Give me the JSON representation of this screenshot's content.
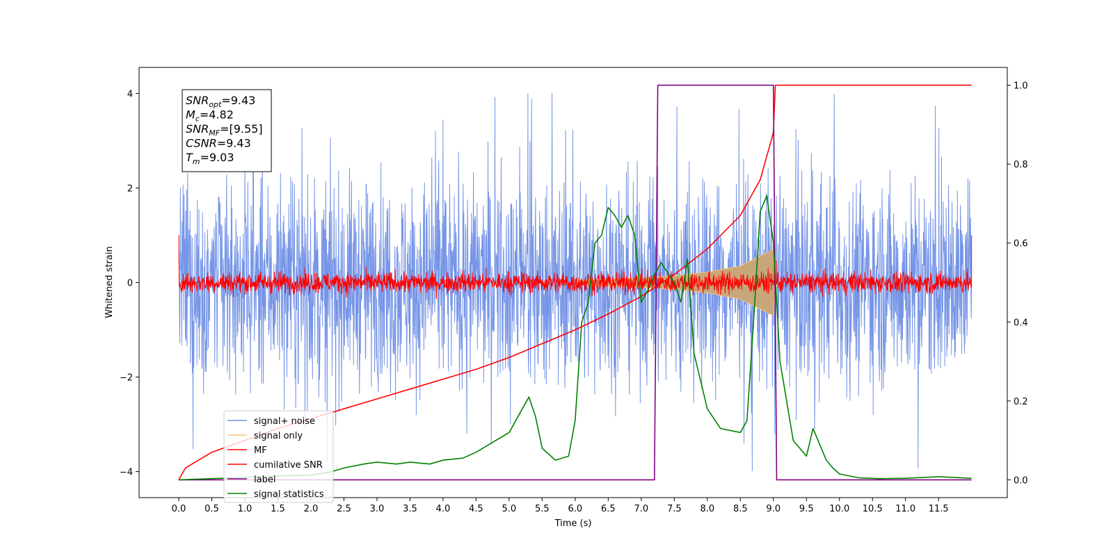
{
  "chart_data": {
    "type": "line",
    "xlabel": "Time (s)",
    "ylabel": "Whitened strain",
    "xlim": [
      -0.6,
      12.54
    ],
    "ylim": [
      -4.55,
      4.55
    ],
    "y2lim": [
      -0.045,
      1.045
    ],
    "x_ticks": [
      "0.0",
      "0.5",
      "1.0",
      "1.5",
      "2.0",
      "2.5",
      "3.0",
      "3.5",
      "4.0",
      "4.5",
      "5.0",
      "5.5",
      "6.0",
      "6.5",
      "7.0",
      "7.5",
      "8.0",
      "8.5",
      "9.0",
      "9.5",
      "10.0",
      "10.5",
      "11.0",
      "11.5"
    ],
    "y_ticks": [
      "4",
      "2",
      "0",
      "−2",
      "−4"
    ],
    "y2_ticks": [
      "1.0",
      "0.8",
      "0.6",
      "0.4",
      "0.2",
      "0.0"
    ],
    "annotation": {
      "lines": [
        {
          "main": "SNR",
          "sub": "opt",
          "value": "=9.43"
        },
        {
          "main": "M",
          "sub": "c",
          "value": "=4.82"
        },
        {
          "main": "SNR",
          "sub": "MF",
          "value": "=[9.55]"
        },
        {
          "main": "CSNR",
          "sub": "",
          "value": "=9.43"
        },
        {
          "main": "T",
          "sub": "m",
          "value": "=9.03"
        }
      ]
    },
    "legend": {
      "placement": "lower-left",
      "entries": [
        {
          "label": "signal+ noise",
          "color": "#6f8fe6"
        },
        {
          "label": "signal only",
          "color": "#f5c27a"
        },
        {
          "label": "MF",
          "color": "#ff0000"
        },
        {
          "label": "cumilative SNR",
          "color": "#ff0000"
        },
        {
          "label": "label",
          "color": "#800080"
        },
        {
          "label": "signal statistics",
          "color": "#008000"
        }
      ]
    },
    "series": [
      {
        "name": "signal+ noise",
        "axis": "left",
        "color": "#6f8fe6",
        "t_range": [
          0.0,
          12.0
        ],
        "mean": 0.0,
        "amplitude_typical": 1.6,
        "amplitude_peak": 4.1
      },
      {
        "name": "signal only",
        "axis": "left",
        "color": "#f5c27a",
        "t_range": [
          0.0,
          9.03
        ],
        "envelope": [
          [
            6.0,
            0.05
          ],
          [
            7.0,
            0.1
          ],
          [
            7.5,
            0.14
          ],
          [
            8.0,
            0.22
          ],
          [
            8.5,
            0.35
          ],
          [
            9.0,
            0.7
          ],
          [
            9.03,
            0.0
          ]
        ]
      },
      {
        "name": "MF",
        "axis": "left",
        "color": "#ff0000",
        "t_range": [
          0.0,
          12.0
        ],
        "amplitude_typical": 0.2,
        "edge_spikes": [
          [
            0.0,
            1.0
          ],
          [
            12.0,
            1.0
          ]
        ]
      },
      {
        "name": "cumilative SNR",
        "axis": "right",
        "x": [
          0.0,
          0.1,
          0.5,
          1.0,
          1.5,
          2.0,
          2.5,
          3.0,
          3.5,
          4.0,
          4.5,
          5.0,
          5.5,
          6.0,
          6.5,
          7.0,
          7.5,
          8.0,
          8.5,
          8.8,
          9.0,
          9.03,
          9.05,
          12.0
        ],
        "y": [
          0.0,
          0.03,
          0.07,
          0.1,
          0.13,
          0.155,
          0.18,
          0.205,
          0.23,
          0.255,
          0.28,
          0.31,
          0.345,
          0.38,
          0.42,
          0.465,
          0.52,
          0.585,
          0.67,
          0.76,
          0.88,
          1.0,
          1.0,
          1.0
        ]
      },
      {
        "name": "label",
        "axis": "right",
        "x": [
          0.0,
          7.2,
          7.25,
          9.0,
          9.05,
          12.0
        ],
        "y": [
          0.0,
          0.0,
          1.0,
          1.0,
          0.0,
          0.0
        ]
      },
      {
        "name": "signal statistics",
        "axis": "right",
        "x": [
          0.0,
          0.5,
          1.0,
          1.5,
          2.0,
          2.3,
          2.5,
          2.8,
          3.0,
          3.3,
          3.5,
          3.8,
          4.0,
          4.3,
          4.5,
          4.7,
          4.9,
          5.0,
          5.1,
          5.2,
          5.3,
          5.4,
          5.5,
          5.7,
          5.9,
          6.0,
          6.1,
          6.2,
          6.3,
          6.4,
          6.5,
          6.6,
          6.7,
          6.8,
          6.9,
          7.0,
          7.1,
          7.2,
          7.3,
          7.5,
          7.6,
          7.7,
          7.8,
          7.9,
          8.0,
          8.2,
          8.5,
          8.6,
          8.7,
          8.8,
          8.9,
          9.0,
          9.1,
          9.3,
          9.5,
          9.6,
          9.7,
          9.8,
          9.9,
          10.0,
          10.3,
          10.6,
          11.0,
          11.5,
          12.0
        ],
        "y": [
          0.0,
          0.003,
          0.006,
          0.01,
          0.012,
          0.02,
          0.03,
          0.04,
          0.045,
          0.04,
          0.045,
          0.04,
          0.05,
          0.055,
          0.07,
          0.09,
          0.11,
          0.12,
          0.15,
          0.18,
          0.21,
          0.16,
          0.08,
          0.05,
          0.06,
          0.15,
          0.4,
          0.45,
          0.6,
          0.62,
          0.69,
          0.67,
          0.64,
          0.67,
          0.62,
          0.45,
          0.48,
          0.52,
          0.55,
          0.5,
          0.45,
          0.56,
          0.32,
          0.25,
          0.18,
          0.13,
          0.12,
          0.15,
          0.4,
          0.68,
          0.72,
          0.6,
          0.3,
          0.1,
          0.06,
          0.13,
          0.09,
          0.05,
          0.03,
          0.015,
          0.005,
          0.003,
          0.004,
          0.008,
          0.004
        ]
      }
    ]
  }
}
